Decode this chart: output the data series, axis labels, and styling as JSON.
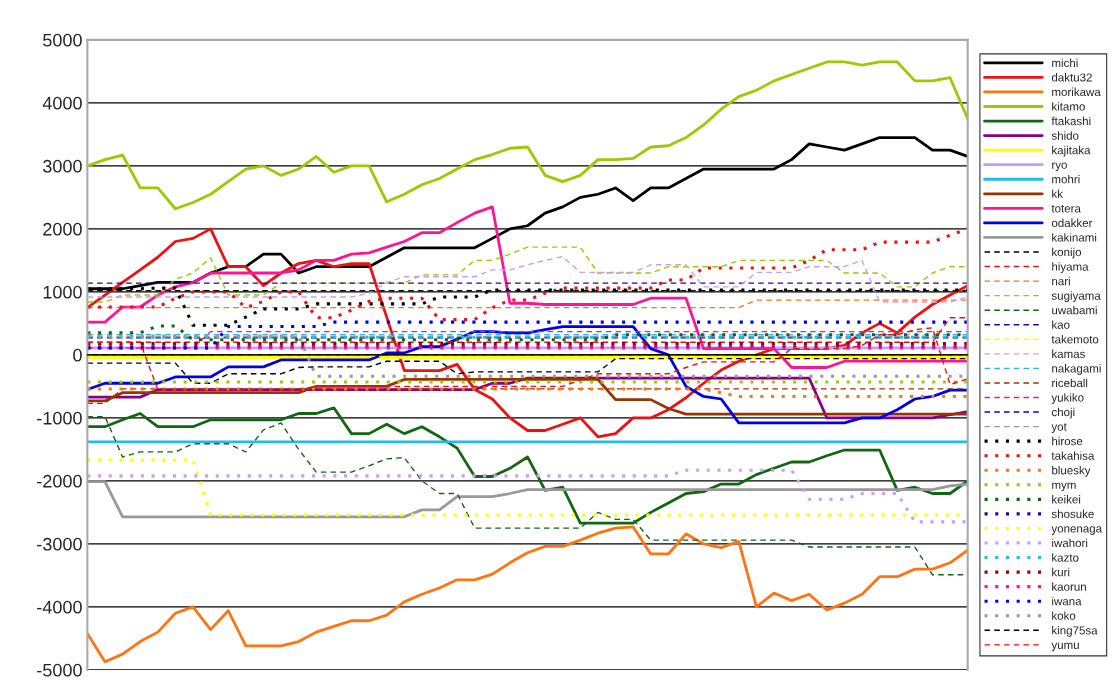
{
  "chart_data": {
    "type": "line",
    "categories": [
      null,
      null,
      null,
      null,
      null,
      null,
      null,
      null,
      null,
      null,
      null,
      null,
      null,
      null,
      null,
      null,
      null,
      null,
      null,
      null,
      null,
      null,
      null,
      null,
      null,
      null,
      null,
      null,
      null,
      null,
      null,
      null,
      null,
      null,
      null,
      null,
      null,
      null,
      null,
      null,
      null,
      null,
      null,
      null,
      null,
      null,
      null,
      null,
      null,
      null,
      null
    ],
    "ylim": [
      -5000,
      5000
    ],
    "yticks": [
      -5000,
      -4000,
      -3000,
      -2000,
      -1000,
      0,
      1000,
      2000,
      3000,
      4000,
      5000
    ],
    "grid": "y",
    "legend": "right",
    "tick_labels": "y",
    "series": [
      {
        "name": "michi",
        "color": "#000000",
        "line_style": "solid",
        "values": [
          1050,
          1050,
          1050,
          1100,
          1150,
          1150,
          1150,
          1300,
          1400,
          1400,
          1600,
          1600,
          1300,
          1400,
          1400,
          1400,
          1400,
          1550,
          1700,
          1700,
          1700,
          1700,
          1700,
          1850,
          2000,
          2050,
          2250,
          2350,
          2500,
          2550,
          2650,
          2450,
          2650,
          2650,
          2800,
          2950,
          2950,
          2950,
          2950,
          2950,
          3100,
          3350,
          3300,
          3250,
          3350,
          3450,
          3450,
          3450,
          3250,
          3250,
          3150
        ]
      },
      {
        "name": "daktu32",
        "color": "#ee1111",
        "line_style": "solid",
        "values": [
          750,
          950,
          1150,
          1350,
          1550,
          1800,
          1850,
          2000,
          1400,
          1400,
          1100,
          1300,
          1450,
          1500,
          1400,
          1450,
          1450,
          600,
          -250,
          -250,
          -250,
          -150,
          -550,
          -700,
          -1000,
          -1200,
          -1200,
          -1100,
          -1000,
          -1300,
          -1250,
          -1000,
          -1000,
          -870,
          -680,
          -450,
          -240,
          -100,
          0,
          100,
          100,
          100,
          100,
          150,
          350,
          500,
          350,
          600,
          800,
          950,
          1100
        ]
      },
      {
        "name": "morikawa",
        "color": "#ff7311",
        "line_style": "solid",
        "values": [
          -4420,
          -4870,
          -4750,
          -4550,
          -4400,
          -4100,
          -4000,
          -4360,
          -4060,
          -4620,
          -4620,
          -4620,
          -4550,
          -4400,
          -4310,
          -4220,
          -4220,
          -4130,
          -3920,
          -3800,
          -3700,
          -3570,
          -3570,
          -3480,
          -3300,
          -3140,
          -3040,
          -3040,
          -2940,
          -2830,
          -2750,
          -2730,
          -3160,
          -3160,
          -2840,
          -3000,
          -3060,
          -2960,
          -4000,
          -3780,
          -3900,
          -3800,
          -4050,
          -3940,
          -3800,
          -3520,
          -3520,
          -3400,
          -3400,
          -3300,
          -3100
        ]
      },
      {
        "name": "kitamo",
        "color": "#99cc00",
        "line_style": "solid",
        "values": [
          3000,
          3100,
          3170,
          2650,
          2650,
          2320,
          2420,
          2550,
          2750,
          2950,
          3000,
          2850,
          2950,
          3150,
          2900,
          3000,
          3000,
          2430,
          2550,
          2700,
          2800,
          2950,
          3100,
          3180,
          3280,
          3300,
          2850,
          2750,
          2850,
          3100,
          3100,
          3120,
          3300,
          3320,
          3450,
          3650,
          3900,
          4100,
          4200,
          4350,
          4450,
          4550,
          4650,
          4650,
          4600,
          4650,
          4650,
          4350,
          4350,
          4400,
          3750
        ]
      },
      {
        "name": "ftakashi",
        "color": "#116611",
        "line_style": "solid",
        "values": [
          -1140,
          -1140,
          -1030,
          -930,
          -1140,
          -1140,
          -1140,
          -1030,
          -1030,
          -1030,
          -1030,
          -1030,
          -930,
          -930,
          -840,
          -1250,
          -1250,
          -1100,
          -1250,
          -1140,
          -1300,
          -1480,
          -1930,
          -1930,
          -1800,
          -1620,
          -2150,
          -2100,
          -2670,
          -2670,
          -2670,
          -2670,
          -2500,
          -2350,
          -2200,
          -2170,
          -2050,
          -2050,
          -1900,
          -1800,
          -1700,
          -1700,
          -1600,
          -1510,
          -1510,
          -1510,
          -2150,
          -2100,
          -2200,
          -2200,
          -2000
        ]
      },
      {
        "name": "shido",
        "color": "#880088",
        "line_style": "solid",
        "values": [
          -670,
          -670,
          -670,
          -670,
          -550,
          -550,
          -550,
          -550,
          -550,
          -550,
          -550,
          -550,
          -550,
          -550,
          -550,
          -550,
          -550,
          -550,
          -550,
          -550,
          -550,
          -550,
          -550,
          -450,
          -450,
          -370,
          -370,
          -370,
          -370,
          -370,
          -370,
          -370,
          -370,
          -370,
          -370,
          -370,
          -370,
          -370,
          -370,
          -370,
          -370,
          -370,
          -1000,
          -1000,
          -1000,
          -1000,
          -1000,
          -1000,
          -1000,
          -950,
          -900
        ]
      },
      {
        "name": "kajitaka",
        "color": "#ffff00",
        "line_style": "solid",
        "values": [
          -40,
          -40,
          -40,
          -40,
          -40,
          -40,
          -40,
          -40,
          -40,
          -40,
          -40,
          -40,
          -40,
          -40,
          -40,
          -40,
          -40,
          -40,
          -40,
          -40,
          -40,
          -40,
          -40,
          -40,
          -40,
          -40,
          -40,
          -40,
          -40,
          -40,
          -40,
          -40,
          -40,
          -40,
          -40,
          -40,
          -40,
          -40,
          -40,
          -40,
          -40,
          -40,
          -40,
          -40,
          -40,
          -40,
          -40,
          -40,
          -40,
          -40,
          -40
        ]
      },
      {
        "name": "ryo",
        "color": "#cc99ff",
        "line_style": "solid",
        "values": [
          110,
          110,
          110,
          110,
          110,
          110,
          110,
          110,
          110,
          110,
          110,
          110,
          110,
          110,
          110,
          110,
          110,
          110,
          110,
          110,
          110,
          110,
          110,
          110,
          110,
          110,
          110,
          110,
          110,
          110,
          110,
          110,
          110,
          110,
          110,
          110,
          110,
          110,
          110,
          110,
          110,
          110,
          110,
          110,
          110,
          110,
          110,
          110,
          110,
          110,
          110
        ]
      },
      {
        "name": "mohri",
        "color": "#22bbee",
        "line_style": "solid",
        "values": [
          -1380,
          -1380,
          -1380,
          -1380,
          -1380,
          -1380,
          -1380,
          -1380,
          -1380,
          -1380,
          -1380,
          -1380,
          -1380,
          -1380,
          -1380,
          -1380,
          -1380,
          -1380,
          -1380,
          -1380,
          -1380,
          -1380,
          -1380,
          -1380,
          -1380,
          -1380,
          -1380,
          -1380,
          -1380,
          -1380,
          -1380,
          -1380,
          -1380,
          -1380,
          -1380,
          -1380,
          -1380,
          -1380,
          -1380,
          -1380,
          -1380,
          -1380,
          -1380,
          -1380,
          -1380,
          -1380,
          -1380,
          -1380,
          -1380,
          -1380,
          -1380
        ]
      },
      {
        "name": "kk",
        "color": "#993300",
        "line_style": "solid",
        "values": [
          -730,
          -730,
          -600,
          -600,
          -600,
          -600,
          -600,
          -600,
          -600,
          -600,
          -600,
          -600,
          -600,
          -500,
          -500,
          -500,
          -500,
          -500,
          -390,
          -390,
          -390,
          -390,
          -390,
          -390,
          -390,
          -390,
          -390,
          -390,
          -390,
          -390,
          -710,
          -710,
          -710,
          -850,
          -940,
          -940,
          -940,
          -940,
          -940,
          -940,
          -940,
          -940,
          -940,
          -940,
          -940,
          -940,
          -940,
          -940,
          -940,
          -940,
          -940
        ]
      },
      {
        "name": "totera",
        "color": "#ff1493",
        "line_style": "solid",
        "values": [
          520,
          520,
          760,
          760,
          950,
          1080,
          1150,
          1300,
          1300,
          1300,
          1300,
          1300,
          1350,
          1500,
          1500,
          1600,
          1620,
          1710,
          1800,
          1940,
          1940,
          2100,
          2250,
          2350,
          820,
          820,
          800,
          800,
          800,
          800,
          800,
          800,
          900,
          900,
          900,
          100,
          100,
          100,
          100,
          100,
          -200,
          -200,
          -200,
          -100,
          -100,
          -100,
          -100,
          -100,
          -100,
          -100,
          -100
        ]
      },
      {
        "name": "odakker",
        "color": "#0000ee",
        "line_style": "solid",
        "values": [
          -550,
          -450,
          -450,
          -450,
          -450,
          -350,
          -350,
          -350,
          -190,
          -190,
          -190,
          -80,
          -80,
          -80,
          -80,
          -80,
          -80,
          30,
          30,
          130,
          130,
          250,
          370,
          370,
          350,
          350,
          400,
          450,
          450,
          450,
          450,
          450,
          100,
          0,
          -500,
          -660,
          -700,
          -1080,
          -1080,
          -1080,
          -1080,
          -1080,
          -1080,
          -1080,
          -1000,
          -1000,
          -870,
          -700,
          -660,
          -560,
          -560
        ]
      },
      {
        "name": "kakinami",
        "color": "#999999",
        "line_style": "solid",
        "values": [
          -2010,
          -2010,
          -2570,
          -2570,
          -2570,
          -2570,
          -2570,
          -2570,
          -2570,
          -2570,
          -2570,
          -2570,
          -2570,
          -2570,
          -2570,
          -2570,
          -2570,
          -2570,
          -2570,
          -2460,
          -2460,
          -2250,
          -2250,
          -2250,
          -2200,
          -2140,
          -2140,
          -2140,
          -2140,
          -2140,
          -2140,
          -2140,
          -2140,
          -2140,
          -2140,
          -2140,
          -2140,
          -2140,
          -2140,
          -2140,
          -2140,
          -2140,
          -2140,
          -2140,
          -2140,
          -2140,
          -2140,
          -2140,
          -2140,
          -2080,
          -2050
        ]
      },
      {
        "name": "konijo",
        "color": "#000000",
        "line_style": "dashed",
        "values": [
          -130,
          -130,
          -130,
          -130,
          -130,
          -130,
          -450,
          -450,
          -300,
          -300,
          -300,
          -300,
          -200,
          -190,
          -190,
          -190,
          -190,
          -100,
          -100,
          -100,
          -100,
          -300,
          -270,
          -270,
          -270,
          -270,
          -270,
          -270,
          -270,
          -270,
          -60,
          -60,
          -60,
          -60,
          -60,
          -60,
          -60,
          -60,
          -60,
          -60,
          -60,
          -60,
          -60,
          -60,
          -60,
          -60,
          -60,
          -60,
          -60,
          -60,
          -60
        ]
      },
      {
        "name": "hiyama",
        "color": "#ee1111",
        "line_style": "dashed",
        "values": [
          200,
          200,
          200,
          200,
          200,
          200,
          200,
          200,
          200,
          200,
          200,
          200,
          200,
          200,
          200,
          200,
          200,
          200,
          200,
          200,
          200,
          200,
          200,
          200,
          200,
          200,
          200,
          200,
          200,
          200,
          200,
          200,
          200,
          200,
          200,
          200,
          200,
          200,
          200,
          200,
          200,
          200,
          200,
          200,
          200,
          200,
          200,
          200,
          200,
          590,
          590
        ]
      },
      {
        "name": "nari",
        "color": "#ff7311",
        "line_style": "dashed",
        "values": [
          750,
          750,
          750,
          750,
          750,
          750,
          750,
          750,
          750,
          750,
          750,
          750,
          750,
          750,
          750,
          750,
          750,
          750,
          750,
          750,
          750,
          750,
          750,
          750,
          750,
          750,
          750,
          750,
          750,
          750,
          750,
          750,
          750,
          750,
          750,
          750,
          750,
          750,
          870,
          870,
          870,
          870,
          870,
          870,
          870,
          870,
          870,
          870,
          870,
          870,
          870
        ]
      },
      {
        "name": "sugiyama",
        "color": "#99cc00",
        "line_style": "dashed",
        "values": [
          840,
          840,
          950,
          950,
          950,
          1200,
          1300,
          1540,
          950,
          950,
          950,
          1140,
          1140,
          1140,
          1140,
          1140,
          1140,
          1140,
          1140,
          1270,
          1270,
          1270,
          1500,
          1500,
          1600,
          1710,
          1710,
          1710,
          1710,
          1300,
          1300,
          1300,
          1300,
          1400,
          1400,
          1400,
          1400,
          1500,
          1500,
          1500,
          1500,
          1500,
          1500,
          1300,
          1300,
          1300,
          1080,
          1080,
          1300,
          1400,
          1400
        ]
      },
      {
        "name": "uwabami",
        "color": "#116611",
        "line_style": "dashed",
        "values": [
          -980,
          -980,
          -1620,
          -1540,
          -1540,
          -1540,
          -1410,
          -1410,
          -1410,
          -1540,
          -1190,
          -1080,
          -1500,
          -1860,
          -1860,
          -1860,
          -1760,
          -1650,
          -1630,
          -2000,
          -2200,
          -2200,
          -2750,
          -2750,
          -2750,
          -2750,
          -2750,
          -2750,
          -2750,
          -2500,
          -2610,
          -2610,
          -2940,
          -2940,
          -2940,
          -2940,
          -2940,
          -2940,
          -2940,
          -2940,
          -2940,
          -3050,
          -3050,
          -3050,
          -3050,
          -3050,
          -3050,
          -3050,
          -3490,
          -3490,
          -3490
        ]
      },
      {
        "name": "kao",
        "color": "#330099",
        "line_style": "dashed",
        "values": [
          1140,
          1140,
          1140,
          1140,
          1140,
          1140,
          1140,
          1140,
          1140,
          1140,
          1140,
          1140,
          1140,
          1140,
          1140,
          1140,
          1140,
          1140,
          1140,
          1140,
          1140,
          1140,
          1140,
          1140,
          1140,
          1140,
          1140,
          1140,
          1140,
          1140,
          1140,
          1140,
          1140,
          1140,
          1140,
          1140,
          1140,
          1140,
          1140,
          1140,
          1140,
          1140,
          1140,
          1140,
          1140,
          1140,
          1140,
          1140,
          1140,
          1140,
          1140
        ]
      },
      {
        "name": "takemoto",
        "color": "#ffff00",
        "line_style": "dashed",
        "values": [
          -20,
          -20,
          -20,
          -20,
          -20,
          -20,
          -20,
          -20,
          -20,
          -20,
          -20,
          -20,
          -20,
          -20,
          -20,
          -20,
          -20,
          -20,
          -20,
          -20,
          -20,
          -20,
          -20,
          -20,
          -20,
          -20,
          -20,
          -20,
          -20,
          -20,
          -20,
          -20,
          -20,
          -20,
          -20,
          -20,
          -20,
          -20,
          -20,
          -20,
          -20,
          -20,
          -20,
          -20,
          -20,
          -20,
          -20,
          -20,
          -20,
          -20,
          -20
        ]
      },
      {
        "name": "kamas",
        "color": "#cc99ff",
        "line_style": "dashed",
        "values": [
          920,
          920,
          920,
          920,
          920,
          920,
          920,
          920,
          920,
          920,
          920,
          920,
          920,
          920,
          920,
          920,
          980,
          1150,
          1240,
          1240,
          1240,
          1240,
          1240,
          1350,
          1350,
          1430,
          1500,
          1560,
          1310,
          1310,
          1310,
          1310,
          1430,
          1430,
          1430,
          1080,
          1080,
          1080,
          1310,
          1310,
          1310,
          1400,
          1400,
          1400,
          1500,
          840,
          840,
          840,
          840,
          840,
          920
        ]
      },
      {
        "name": "nakagami",
        "color": "#22bbee",
        "line_style": "dashed",
        "values": [
          320,
          320,
          320,
          320,
          320,
          320,
          320,
          320,
          320,
          320,
          320,
          320,
          320,
          320,
          320,
          320,
          320,
          320,
          320,
          320,
          320,
          320,
          320,
          320,
          320,
          320,
          320,
          320,
          320,
          320,
          320,
          320,
          320,
          320,
          320,
          320,
          320,
          320,
          320,
          320,
          320,
          320,
          320,
          320,
          320,
          320,
          320,
          320,
          320,
          320,
          320
        ]
      },
      {
        "name": "riceball",
        "color": "#993300",
        "line_style": "dashed",
        "values": [
          -770,
          -770,
          -540,
          -540,
          -540,
          -540,
          -540,
          -540,
          -540,
          -540,
          -540,
          -540,
          -540,
          -540,
          -540,
          -540,
          -540,
          -540,
          -540,
          -540,
          -540,
          -540,
          -540,
          -540,
          -540,
          -540,
          -540,
          -540,
          -540,
          -540,
          -540,
          -540,
          -540,
          -540,
          -540,
          -540,
          -540,
          -540,
          -540,
          -540,
          -540,
          -540,
          -540,
          -540,
          -540,
          -540,
          -540,
          -540,
          -540,
          -540,
          -540
        ]
      },
      {
        "name": "yukiko",
        "color": "#ff1493",
        "line_style": "dashed",
        "values": [
          110,
          110,
          110,
          110,
          110,
          110,
          110,
          370,
          370,
          370,
          370,
          370,
          370,
          370,
          370,
          370,
          370,
          370,
          370,
          370,
          370,
          370,
          370,
          370,
          370,
          370,
          370,
          370,
          370,
          370,
          370,
          370,
          370,
          370,
          370,
          370,
          370,
          370,
          370,
          370,
          370,
          370,
          370,
          370,
          370,
          370,
          370,
          370,
          370,
          370,
          370
        ]
      },
      {
        "name": "choji",
        "color": "#0000ee",
        "line_style": "dashed",
        "values": [
          270,
          270,
          270,
          270,
          270,
          270,
          270,
          270,
          270,
          270,
          270,
          270,
          270,
          270,
          270,
          270,
          270,
          270,
          270,
          270,
          270,
          270,
          270,
          270,
          270,
          270,
          270,
          270,
          270,
          270,
          270,
          270,
          270,
          270,
          270,
          270,
          270,
          270,
          270,
          270,
          270,
          270,
          270,
          270,
          270,
          270,
          270,
          270,
          270,
          270,
          270
        ]
      },
      {
        "name": "yot",
        "color": "#999999",
        "line_style": "dashed",
        "values": [
          290,
          290,
          290,
          290,
          290,
          290,
          290,
          290,
          290,
          290,
          290,
          290,
          290,
          290,
          290,
          290,
          290,
          290,
          290,
          290,
          290,
          290,
          290,
          290,
          290,
          290,
          290,
          290,
          290,
          290,
          290,
          290,
          290,
          290,
          290,
          290,
          290,
          290,
          290,
          290,
          290,
          290,
          290,
          290,
          290,
          290,
          290,
          290,
          290,
          290,
          290
        ]
      },
      {
        "name": "hirose",
        "color": "#000000",
        "line_style": "dotted",
        "values": [
          1050,
          1050,
          1050,
          1050,
          1060,
          1060,
          470,
          470,
          470,
          600,
          730,
          730,
          730,
          810,
          810,
          810,
          810,
          810,
          810,
          810,
          920,
          920,
          920,
          1030,
          1030,
          1030,
          1030,
          1030,
          1030,
          1030,
          1030,
          1030,
          1030,
          1030,
          1030,
          1030,
          1030,
          1030,
          1030,
          1030,
          1030,
          1030,
          1030,
          1030,
          1030,
          1030,
          1030,
          1030,
          1030,
          1030,
          1030
        ]
      },
      {
        "name": "takahisa",
        "color": "#ee1111",
        "line_style": "dotted",
        "values": [
          760,
          760,
          760,
          760,
          760,
          900,
          1000,
          1000,
          1000,
          750,
          850,
          1000,
          1000,
          590,
          590,
          710,
          850,
          900,
          900,
          900,
          560,
          560,
          560,
          750,
          870,
          870,
          980,
          1060,
          1060,
          1060,
          1060,
          1060,
          1060,
          1190,
          1190,
          1380,
          1380,
          1380,
          1380,
          1380,
          1380,
          1500,
          1670,
          1670,
          1670,
          1790,
          1790,
          1790,
          1790,
          1900,
          2000
        ]
      },
      {
        "name": "bluesky",
        "color": "#ff7311",
        "line_style": "dotted",
        "values": [
          -540,
          -540,
          -540,
          -540,
          -540,
          -540,
          -540,
          -540,
          -540,
          -540,
          -540,
          -540,
          -540,
          -540,
          -540,
          -540,
          -540,
          -540,
          -540,
          -540,
          -540,
          -540,
          -540,
          -540,
          -540,
          -540,
          -540,
          -540,
          -540,
          -540,
          -540,
          -540,
          -540,
          -540,
          -540,
          -540,
          -600,
          -660,
          -660,
          -660,
          -660,
          -660,
          -660,
          -660,
          -660,
          -660,
          -660,
          -660,
          -660,
          -660,
          -660
        ]
      },
      {
        "name": "mym",
        "color": "#99cc00",
        "line_style": "dotted",
        "values": [
          -430,
          -430,
          -430,
          -430,
          -430,
          -430,
          -430,
          -430,
          -430,
          -430,
          -430,
          -430,
          -430,
          -430,
          -430,
          -430,
          -430,
          -430,
          -430,
          -430,
          -430,
          -430,
          -430,
          -430,
          -430,
          -430,
          -430,
          -430,
          -430,
          -430,
          -430,
          -430,
          -430,
          -430,
          -430,
          -430,
          -430,
          -430,
          -430,
          -430,
          -430,
          -430,
          -430,
          -430,
          -430,
          -430,
          -430,
          -430,
          -430,
          -430,
          -430
        ]
      },
      {
        "name": "keikei",
        "color": "#116611",
        "line_style": "dotted",
        "values": [
          350,
          350,
          350,
          350,
          460,
          460,
          240,
          240,
          240,
          240,
          240,
          240,
          240,
          240,
          240,
          240,
          240,
          240,
          240,
          240,
          240,
          240,
          240,
          240,
          240,
          240,
          240,
          240,
          240,
          240,
          320,
          320,
          320,
          320,
          320,
          320,
          320,
          320,
          320,
          320,
          320,
          320,
          320,
          320,
          320,
          320,
          320,
          320,
          320,
          320,
          320
        ]
      },
      {
        "name": "shosuke",
        "color": "#330099",
        "line_style": "dotted",
        "values": [
          130,
          130,
          130,
          130,
          130,
          130,
          130,
          130,
          130,
          130,
          130,
          130,
          130,
          130,
          130,
          130,
          130,
          130,
          130,
          130,
          130,
          130,
          130,
          130,
          130,
          130,
          130,
          130,
          130,
          130,
          130,
          130,
          130,
          130,
          130,
          130,
          130,
          130,
          130,
          130,
          130,
          130,
          130,
          130,
          130,
          130,
          130,
          130,
          130,
          130,
          130
        ]
      },
      {
        "name": "yonenaga",
        "color": "#ffff00",
        "line_style": "dotted",
        "values": [
          -1670,
          -1670,
          -1670,
          -1670,
          -1670,
          -1670,
          -1670,
          -2540,
          -2540,
          -2540,
          -2540,
          -2540,
          -2540,
          -2540,
          -2540,
          -2540,
          -2540,
          -2540,
          -2540,
          -2540,
          -2540,
          -2540,
          -2540,
          -2540,
          -2540,
          -2540,
          -2540,
          -2540,
          -2540,
          -2540,
          -2540,
          -2540,
          -2540,
          -2540,
          -2540,
          -2540,
          -2540,
          -2540,
          -2540,
          -2540,
          -2540,
          -2540,
          -2540,
          -2540,
          -2540,
          -2540,
          -2540,
          -2540,
          -2540,
          -2540,
          -2540
        ]
      },
      {
        "name": "iwahori",
        "color": "#cc99ff",
        "line_style": "dotted",
        "values": [
          -1920,
          -1920,
          -1920,
          -1920,
          -1920,
          -1920,
          -1920,
          -1920,
          -1920,
          -1920,
          -1920,
          -1920,
          -1920,
          -1920,
          -1920,
          -1920,
          -1920,
          -1920,
          -1920,
          -1920,
          -1920,
          -1920,
          -1920,
          -1920,
          -1920,
          -1920,
          -1920,
          -1920,
          -1920,
          -1920,
          -1920,
          -1920,
          -1920,
          -1920,
          -1830,
          -1830,
          -1830,
          -1830,
          -1830,
          -1830,
          -1830,
          -2290,
          -2290,
          -2290,
          -2200,
          -2200,
          -2200,
          -2650,
          -2650,
          -2650,
          -2650
        ]
      },
      {
        "name": "kazto",
        "color": "#22bbee",
        "line_style": "dotted",
        "values": [
          280,
          280,
          280,
          280,
          280,
          280,
          280,
          280,
          280,
          280,
          280,
          280,
          280,
          280,
          280,
          280,
          280,
          280,
          280,
          280,
          280,
          280,
          280,
          280,
          280,
          280,
          280,
          280,
          280,
          280,
          280,
          280,
          280,
          280,
          280,
          280,
          280,
          280,
          280,
          280,
          280,
          280,
          280,
          280,
          280,
          280,
          280,
          280,
          280,
          280,
          280
        ]
      },
      {
        "name": "kuri",
        "color": "#990000",
        "line_style": "dotted",
        "values": [
          180,
          180,
          180,
          180,
          180,
          180,
          180,
          180,
          180,
          180,
          180,
          180,
          180,
          180,
          180,
          180,
          180,
          180,
          180,
          180,
          180,
          180,
          180,
          180,
          180,
          180,
          180,
          180,
          180,
          180,
          180,
          180,
          180,
          180,
          180,
          180,
          180,
          180,
          180,
          180,
          180,
          180,
          180,
          180,
          180,
          180,
          180,
          180,
          180,
          180,
          180
        ]
      },
      {
        "name": "kaorun",
        "color": "#ff1493",
        "line_style": "dotted",
        "values": [
          110,
          110,
          110,
          110,
          110,
          110,
          110,
          110,
          110,
          110,
          110,
          110,
          110,
          110,
          110,
          110,
          110,
          110,
          110,
          110,
          110,
          110,
          110,
          110,
          110,
          110,
          110,
          110,
          110,
          110,
          110,
          110,
          110,
          110,
          110,
          110,
          110,
          110,
          110,
          110,
          110,
          110,
          110,
          110,
          110,
          110,
          110,
          110,
          110,
          110,
          110
        ]
      },
      {
        "name": "iwana",
        "color": "#0000ee",
        "line_style": "dotted",
        "values": [
          110,
          110,
          110,
          110,
          110,
          110,
          110,
          110,
          450,
          450,
          450,
          450,
          450,
          450,
          520,
          520,
          520,
          520,
          520,
          520,
          520,
          520,
          520,
          520,
          520,
          520,
          520,
          520,
          520,
          520,
          520,
          520,
          520,
          520,
          520,
          520,
          520,
          520,
          520,
          520,
          520,
          520,
          520,
          520,
          520,
          520,
          520,
          520,
          520,
          520,
          520
        ]
      },
      {
        "name": "koko",
        "color": "#999999",
        "line_style": "dotted",
        "values": [
          300,
          300,
          300,
          300,
          300,
          300,
          300,
          300,
          300,
          300,
          300,
          300,
          300,
          -340,
          -340,
          -340,
          -340,
          -340,
          -340,
          -340,
          -340,
          -340,
          -340,
          -340,
          -340,
          -340,
          -340,
          -340,
          -340,
          -340,
          -340,
          -340,
          -340,
          -340,
          -340,
          -340,
          -340,
          -340,
          -340,
          -340,
          -340,
          -340,
          -340,
          -340,
          -340,
          -340,
          -340,
          -340,
          -340,
          -340,
          -340
        ]
      },
      {
        "name": "king75sa",
        "color": "#000000",
        "line_style": "dashed",
        "values": [
          1020,
          1020,
          1020,
          1020,
          1020,
          1020,
          1020,
          1020,
          1020,
          1020,
          1020,
          1020,
          1020,
          1020,
          1020,
          1020,
          1020,
          1020,
          1020,
          1020,
          1020,
          1020,
          1020,
          1020,
          1020,
          1020,
          1020,
          1020,
          1020,
          1020,
          1020,
          1020,
          1020,
          1020,
          1020,
          1020,
          1020,
          1020,
          1020,
          1020,
          1020,
          1020,
          1020,
          1020,
          1020,
          1020,
          1020,
          1020,
          1020,
          1020,
          1020
        ]
      },
      {
        "name": "yumu",
        "color": "#ee1111",
        "line_style": "dashed",
        "values": [
          200,
          200,
          200,
          200,
          -550,
          -550,
          -550,
          -550,
          -550,
          -550,
          -550,
          -550,
          -550,
          -500,
          -500,
          -500,
          -500,
          -500,
          -500,
          -500,
          -500,
          -500,
          -500,
          -500,
          -500,
          -500,
          -500,
          -500,
          -400,
          -300,
          -300,
          -300,
          -300,
          -300,
          -200,
          -110,
          -110,
          -110,
          -110,
          -110,
          100,
          100,
          100,
          100,
          150,
          320,
          320,
          400,
          430,
          -470,
          -380
        ]
      }
    ]
  }
}
